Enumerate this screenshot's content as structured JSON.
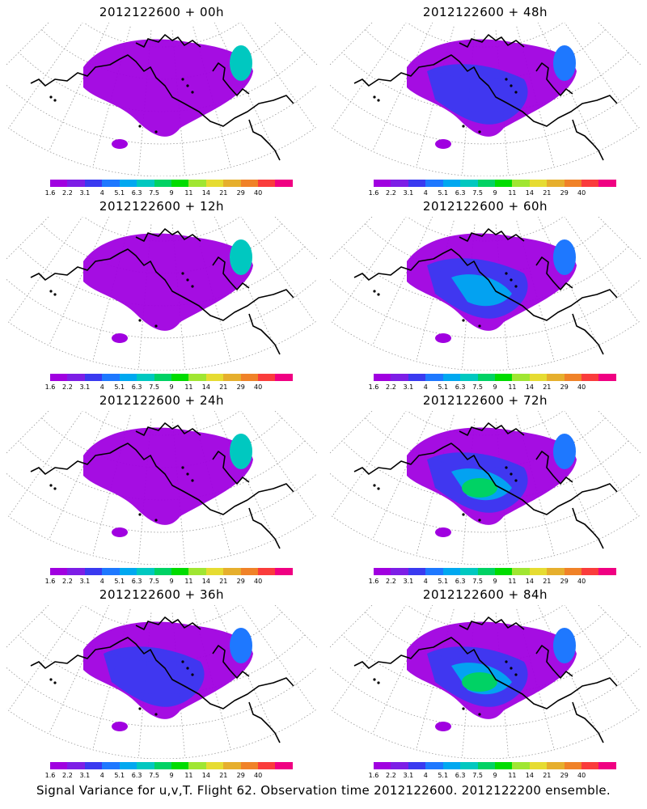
{
  "panels": [
    {
      "title": "2012122600 + 00h",
      "level": 0
    },
    {
      "title": "2012122600 + 48h",
      "level": 1
    },
    {
      "title": "2012122600 + 12h",
      "level": 0
    },
    {
      "title": "2012122600 + 60h",
      "level": 2
    },
    {
      "title": "2012122600 + 24h",
      "level": 0
    },
    {
      "title": "2012122600 + 72h",
      "level": 3
    },
    {
      "title": "2012122600 + 36h",
      "level": 1
    },
    {
      "title": "2012122600 + 84h",
      "level": 3
    }
  ],
  "colorbar": {
    "labels": [
      "1.6",
      "2.2",
      "3.1",
      "4",
      "5.1",
      "6.3",
      "7.5",
      "9",
      "11",
      "14",
      "21",
      "29",
      "40"
    ],
    "colors": [
      "#a000e0",
      "#7d1ee6",
      "#3a3af0",
      "#1e78ff",
      "#00a8f0",
      "#00c8c0",
      "#00d264",
      "#00dc00",
      "#a0e632",
      "#e6dc32",
      "#e6af2d",
      "#f08228",
      "#fa3c3c",
      "#f00082"
    ]
  },
  "caption": "Signal Variance for u,v,T. Flight 62. Observation time 2012122600. 2012122200 ensemble."
}
